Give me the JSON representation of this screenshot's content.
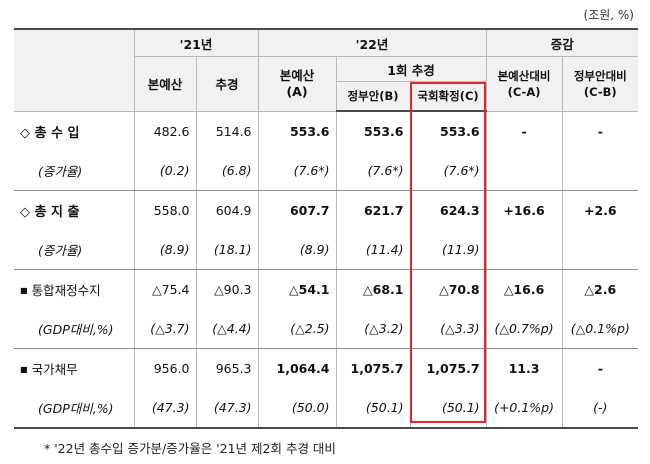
{
  "unit_note": "(조원, %)",
  "header": {
    "col_21": "'21년",
    "col_22": "'22년",
    "col_change": "증감",
    "main_budget_21": "본예산",
    "supp_21": "추경",
    "main_budget_22_line1": "본예산",
    "main_budget_22_line2": "(A)",
    "first_supp": "1회 추경",
    "gov_proposal": "정부안(B)",
    "assembly_final": "국회확정(C)",
    "vs_main_line1": "본예산대비",
    "vs_main_line2": "(C-A)",
    "vs_gov_line1": "정부안대비",
    "vs_gov_line2": "(C-B)"
  },
  "rows": [
    {
      "label": "◇ 총 수 입",
      "values": [
        "482.6",
        "514.6",
        "553.6",
        "553.6",
        "553.6",
        "-",
        "-"
      ]
    },
    {
      "label": "(증가율)",
      "values": [
        "(0.2)",
        "(6.8)",
        "(7.6*)",
        "(7.6*)",
        "(7.6*)",
        "",
        ""
      ]
    },
    {
      "label": "◇ 총 지 출",
      "values": [
        "558.0",
        "604.9",
        "607.7",
        "621.7",
        "624.3",
        "+16.6",
        "+2.6"
      ]
    },
    {
      "label": "(증가율)",
      "values": [
        "(8.9)",
        "(18.1)",
        "(8.9)",
        "(11.4)",
        "(11.9)",
        "",
        ""
      ]
    },
    {
      "label": "통합재정수지",
      "bullet": "■",
      "values": [
        "△75.4",
        "△90.3",
        "△54.1",
        "△68.1",
        "△70.8",
        "△16.6",
        "△2.6"
      ]
    },
    {
      "label": "(GDP대비,%)",
      "values": [
        "(△3.7)",
        "(△4.4)",
        "(△2.5)",
        "(△3.2)",
        "(△3.3)",
        "(△0.7%p)",
        "(△0.1%p)"
      ]
    },
    {
      "label": "국가채무",
      "bullet": "■",
      "values": [
        "956.0",
        "965.3",
        "1,064.4",
        "1,075.7",
        "1,075.7",
        "11.3",
        "-"
      ]
    },
    {
      "label": "(GDP대비,%)",
      "values": [
        "(47.3)",
        "(47.3)",
        "(50.0)",
        "(50.1)",
        "(50.1)",
        "(+0.1%p)",
        "(-)"
      ]
    }
  ],
  "footnote": "* '22년 총수입 증가분/증가율은 '21년 제2회 추경 대비",
  "colors": {
    "highlight_border": "#e3262a",
    "header_bg": "#f1f1f1"
  }
}
